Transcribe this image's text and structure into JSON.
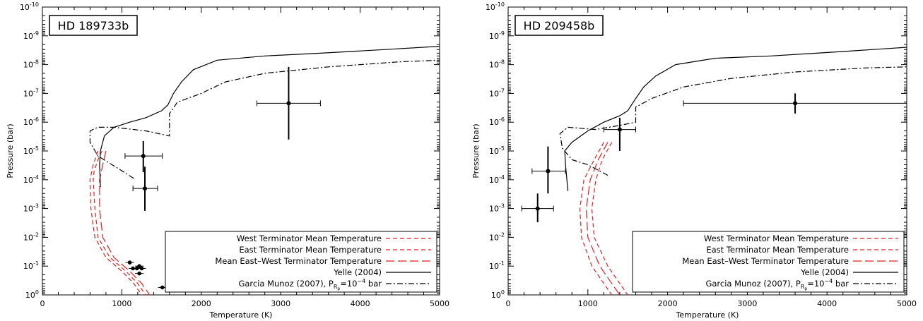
{
  "chart_data": [
    {
      "type": "line",
      "title": "HD 189733b",
      "xlabel": "Temperature (K)",
      "ylabel": "Pressure (bar)",
      "xlim": [
        0,
        5000
      ],
      "ylim": [
        1e-10,
        1
      ],
      "y_scale": "log",
      "y_inverted": true,
      "x_ticks": [
        "0",
        "1000",
        "2000",
        "3000",
        "4000",
        "5000"
      ],
      "y_ticks": [
        {
          "base": "10",
          "exp": "-10"
        },
        {
          "base": "10",
          "exp": "-9"
        },
        {
          "base": "10",
          "exp": "-8"
        },
        {
          "base": "10",
          "exp": "-7"
        },
        {
          "base": "10",
          "exp": "-6"
        },
        {
          "base": "10",
          "exp": "-5"
        },
        {
          "base": "10",
          "exp": "-4"
        },
        {
          "base": "10",
          "exp": "-3"
        },
        {
          "base": "10",
          "exp": "-2"
        },
        {
          "base": "10",
          "exp": "-1"
        },
        {
          "base": "10",
          "exp": "0"
        }
      ],
      "legend_position": "bottom-right",
      "legend_labels": {
        "west": "West Terminator Mean Temperature",
        "east": "East Terminator Mean Temperature",
        "mean": "Mean East–West Terminator Temperature",
        "yelle": "Yelle (2004)",
        "garcia_prefix": "Garcia Munoz (2007), P",
        "garcia_sub": "R",
        "garcia_subsub": "p",
        "garcia_eq": "=10",
        "garcia_exp": "−4",
        "garcia_unit": " bar"
      },
      "series": [
        {
          "key": "west",
          "color": "#e02020",
          "style": "dashed",
          "points": [
            [
              750,
              1e-05
            ],
            [
              700,
              2e-05
            ],
            [
              650,
              5e-05
            ],
            [
              640,
              0.0001
            ],
            [
              660,
              0.001
            ],
            [
              700,
              0.01
            ],
            [
              850,
              0.05
            ],
            [
              1050,
              0.15
            ],
            [
              1200,
              0.4
            ],
            [
              1300,
              1
            ]
          ]
        },
        {
          "key": "east",
          "color": "#e02020",
          "style": "dashed",
          "points": [
            [
              700,
              1e-05
            ],
            [
              640,
              3e-05
            ],
            [
              600,
              0.0001
            ],
            [
              610,
              0.001
            ],
            [
              660,
              0.01
            ],
            [
              800,
              0.05
            ],
            [
              1000,
              0.15
            ],
            [
              1150,
              0.4
            ],
            [
              1250,
              1
            ]
          ]
        },
        {
          "key": "mean",
          "color": "#e02020",
          "style": "longdash",
          "points": [
            [
              800,
              1e-05
            ],
            [
              760,
              3e-05
            ],
            [
              720,
              0.0001
            ],
            [
              720,
              0.001
            ],
            [
              760,
              0.01
            ],
            [
              900,
              0.05
            ],
            [
              1100,
              0.15
            ],
            [
              1250,
              0.4
            ],
            [
              1350,
              1
            ]
          ]
        },
        {
          "key": "yelle",
          "color": "#000000",
          "style": "solid",
          "points": [
            [
              730,
              0.00018
            ],
            [
              720,
              3e-05
            ],
            [
              730,
              1e-05
            ],
            [
              780,
              3e-06
            ],
            [
              900,
              1.5e-06
            ],
            [
              1100,
              1e-06
            ],
            [
              1300,
              7e-07
            ],
            [
              1500,
              4e-07
            ],
            [
              1580,
              2.5e-07
            ],
            [
              1650,
              1e-07
            ],
            [
              1750,
              4e-08
            ],
            [
              1900,
              1.5e-08
            ],
            [
              2200,
              7e-09
            ],
            [
              2800,
              5e-09
            ],
            [
              3500,
              4e-09
            ],
            [
              4300,
              3e-09
            ],
            [
              5000,
              2.3e-09
            ]
          ]
        },
        {
          "key": "garcia",
          "color": "#000000",
          "style": "dashdot",
          "points": [
            [
              1150,
              9e-05
            ],
            [
              950,
              4e-05
            ],
            [
              700,
              1.5e-05
            ],
            [
              600,
              5e-06
            ],
            [
              600,
              2e-06
            ],
            [
              700,
              1.5e-06
            ],
            [
              900,
              1.5e-06
            ],
            [
              1300,
              2e-06
            ],
            [
              1600,
              3e-06
            ],
            [
              1600,
              5e-07
            ],
            [
              1700,
              2e-07
            ],
            [
              2000,
              1e-07
            ],
            [
              2300,
              4e-08
            ],
            [
              2800,
              2e-08
            ],
            [
              3600,
              1.2e-08
            ],
            [
              4500,
              8e-09
            ],
            [
              5000,
              7e-09
            ]
          ]
        }
      ],
      "error_points": [
        {
          "x": 3100,
          "y": 2.2e-07,
          "xerr": [
            2700,
            3500
          ],
          "yerr": [
            1.2e-08,
            4e-06
          ]
        },
        {
          "x": 1270,
          "y": 1.5e-05,
          "xerr": [
            1040,
            1510
          ],
          "yerr": [
            4.5e-06,
            5.5e-05
          ]
        },
        {
          "x": 1290,
          "y": 0.0002,
          "xerr": [
            1140,
            1450
          ],
          "yerr": [
            3.5e-05,
            0.0012
          ]
        }
      ],
      "dots": [
        [
          1100,
          0.075
        ],
        [
          1140,
          0.12
        ],
        [
          1190,
          0.12
        ],
        [
          1220,
          0.1
        ],
        [
          1220,
          0.18
        ],
        [
          1250,
          0.12
        ],
        [
          1510,
          0.55
        ]
      ]
    },
    {
      "type": "line",
      "title": "HD 209458b",
      "xlabel": "Temperature (K)",
      "ylabel": "Pressure (bar)",
      "xlim": [
        0,
        5000
      ],
      "ylim": [
        1e-10,
        1
      ],
      "y_scale": "log",
      "y_inverted": true,
      "x_ticks": [
        "0",
        "1000",
        "2000",
        "3000",
        "4000",
        "5000"
      ],
      "y_ticks": [
        {
          "base": "10",
          "exp": "-10"
        },
        {
          "base": "10",
          "exp": "-9"
        },
        {
          "base": "10",
          "exp": "-8"
        },
        {
          "base": "10",
          "exp": "-7"
        },
        {
          "base": "10",
          "exp": "-6"
        },
        {
          "base": "10",
          "exp": "-5"
        },
        {
          "base": "10",
          "exp": "-4"
        },
        {
          "base": "10",
          "exp": "-3"
        },
        {
          "base": "10",
          "exp": "-2"
        },
        {
          "base": "10",
          "exp": "-1"
        },
        {
          "base": "10",
          "exp": "0"
        }
      ],
      "legend_position": "bottom-right",
      "legend_labels": {
        "west": "West Terminator Mean Temperature",
        "east": "East Terminator Mean Temperature",
        "mean": "Mean East–West Terminator Temperature",
        "yelle": "Yelle (2004)",
        "garcia_prefix": "Garcia Munoz (2007), P",
        "garcia_sub": "R",
        "garcia_subsub": "p",
        "garcia_eq": "=10",
        "garcia_exp": "−4",
        "garcia_unit": " bar"
      },
      "series": [
        {
          "key": "west",
          "color": "#e02020",
          "style": "dashed",
          "points": [
            [
              1200,
              5e-06
            ],
            [
              1080,
              2e-05
            ],
            [
              950,
              0.0001
            ],
            [
              900,
              0.001
            ],
            [
              920,
              0.01
            ],
            [
              1050,
              0.1
            ],
            [
              1200,
              0.4
            ],
            [
              1300,
              1
            ]
          ]
        },
        {
          "key": "east",
          "color": "#e02020",
          "style": "dashed",
          "points": [
            [
              1300,
              5e-06
            ],
            [
              1180,
              2e-05
            ],
            [
              1100,
              0.0001
            ],
            [
              1050,
              0.001
            ],
            [
              1080,
              0.01
            ],
            [
              1250,
              0.1
            ],
            [
              1400,
              0.4
            ],
            [
              1500,
              1
            ]
          ]
        },
        {
          "key": "mean",
          "color": "#e02020",
          "style": "longdash",
          "points": [
            [
              1250,
              5e-06
            ],
            [
              1130,
              2e-05
            ],
            [
              1030,
              0.0001
            ],
            [
              980,
              0.001
            ],
            [
              1000,
              0.01
            ],
            [
              1150,
              0.1
            ],
            [
              1300,
              0.4
            ],
            [
              1400,
              1
            ]
          ]
        },
        {
          "key": "yelle",
          "color": "#000000",
          "style": "solid",
          "points": [
            [
              750,
              0.00025
            ],
            [
              720,
              3e-05
            ],
            [
              710,
              1e-05
            ],
            [
              800,
              5e-06
            ],
            [
              1000,
              2e-06
            ],
            [
              1200,
              1e-06
            ],
            [
              1400,
              6e-07
            ],
            [
              1500,
              4e-07
            ],
            [
              1600,
              1.5e-07
            ],
            [
              1700,
              6e-08
            ],
            [
              1850,
              2.5e-08
            ],
            [
              2100,
              1e-08
            ],
            [
              2600,
              6e-09
            ],
            [
              3300,
              5e-09
            ],
            [
              4200,
              3.5e-09
            ],
            [
              5000,
              2.5e-09
            ]
          ]
        },
        {
          "key": "garcia",
          "color": "#000000",
          "style": "dashdot",
          "points": [
            [
              1250,
              7e-05
            ],
            [
              1000,
              3e-05
            ],
            [
              800,
              2e-05
            ],
            [
              680,
              8e-06
            ],
            [
              650,
              2.5e-06
            ],
            [
              750,
              1.5e-06
            ],
            [
              1100,
              1.8e-06
            ],
            [
              1400,
              1.3e-06
            ],
            [
              1600,
              1e-06
            ],
            [
              1600,
              3e-07
            ],
            [
              1800,
              1.5e-07
            ],
            [
              2200,
              6e-08
            ],
            [
              2800,
              3e-08
            ],
            [
              3600,
              1.8e-08
            ],
            [
              4500,
              1.3e-08
            ],
            [
              5000,
              1.2e-08
            ]
          ]
        }
      ],
      "error_points": [
        {
          "x": 3600,
          "y": 2.2e-07,
          "xerr": [
            2200,
            5000
          ],
          "yerr": [
            1e-07,
            5e-07
          ]
        },
        {
          "x": 1400,
          "y": 1.8e-06,
          "xerr": [
            1200,
            1600
          ],
          "yerr": [
            7e-07,
            1e-05
          ]
        },
        {
          "x": 500,
          "y": 5e-05,
          "xerr": [
            300,
            720
          ],
          "yerr": [
            7e-06,
            0.0003
          ]
        },
        {
          "x": 370,
          "y": 0.001,
          "xerr": [
            170,
            570
          ],
          "yerr": [
            0.0003,
            0.003
          ]
        }
      ],
      "dots": []
    }
  ]
}
